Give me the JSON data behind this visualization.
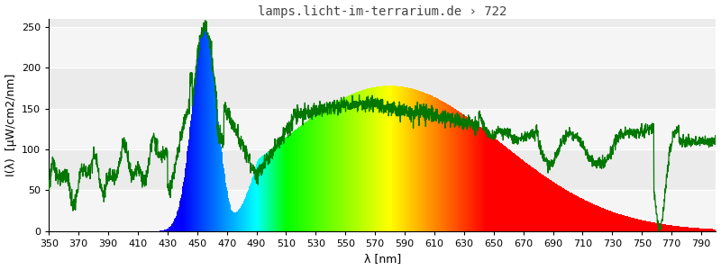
{
  "title": "lamps.licht-im-terrarium.de › 722",
  "xlabel": "λ [nm]",
  "ylabel": "I(λ)  [µW/cm2/nm]",
  "xlim": [
    350,
    800
  ],
  "ylim": [
    0,
    260
  ],
  "yticks": [
    0,
    50,
    100,
    150,
    200,
    250
  ],
  "xticks": [
    350,
    370,
    390,
    410,
    430,
    450,
    470,
    490,
    510,
    530,
    550,
    570,
    590,
    610,
    630,
    650,
    670,
    690,
    710,
    730,
    750,
    770,
    790
  ],
  "title_fontsize": 10,
  "axis_label_fontsize": 9,
  "tick_fontsize": 8,
  "background_color": "#ffffff",
  "plot_bg_color": "#ebebeb",
  "stripe_light_color": "#f5f5f5",
  "line_color": "#007700",
  "line_width": 0.9
}
